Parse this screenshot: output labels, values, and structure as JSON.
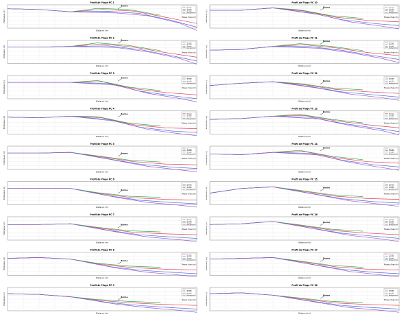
{
  "figure": {
    "text_y_axis": "Profondeur (m)",
    "text_x_axis": "Distance (m)",
    "legend_entries": [
      "Groupe",
      "Groupe",
      "Groupe",
      "Bathymétrie"
    ],
    "annotation_label": "Berme",
    "side_note": "Niveau d'eau (m)",
    "series_colors": [
      "#e4404a",
      "#4a6ee0",
      "#33a852",
      "#9b5bd6"
    ]
  },
  "chart_data": [
    {
      "type": "line",
      "title": "Profil de Plage PC 1",
      "x": [
        0,
        200,
        400,
        600,
        800,
        1000,
        1200
      ],
      "series": [
        {
          "values": [
            0.5,
            0.4,
            0.1,
            0.4,
            0.2,
            -0.6,
            -1.4
          ]
        }
      ]
    },
    {
      "type": "line",
      "title": "Profil de Plage PC 10",
      "x": [
        0,
        200,
        400,
        600,
        800,
        1000,
        1200
      ],
      "series": [
        {
          "values": [
            0.3,
            0.3,
            0.6,
            0.2,
            -0.6,
            -1.0,
            -1.2
          ]
        }
      ]
    },
    {
      "type": "line",
      "title": "Profil de Plage PC 2",
      "x": [
        0,
        200,
        400,
        600,
        800,
        1000,
        1200
      ],
      "series": [
        {
          "values": [
            0.1,
            0.1,
            0.2,
            0.5,
            0.1,
            -0.6,
            -1.2
          ]
        }
      ]
    },
    {
      "type": "line",
      "title": "Profil de Plage PC 11",
      "x": [
        0,
        200,
        400,
        600,
        800,
        1000,
        1200
      ],
      "series": [
        {
          "values": [
            -0.3,
            -0.2,
            0.2,
            0.4,
            0.0,
            -0.6,
            -1.0
          ]
        }
      ]
    },
    {
      "type": "line",
      "title": "Profil de Plage PC 3",
      "x": [
        0,
        200,
        400,
        600,
        800,
        1000,
        1200
      ],
      "series": [
        {
          "values": [
            0.1,
            0.1,
            0.1,
            0.2,
            -0.7,
            -1.2,
            -1.5
          ]
        }
      ]
    },
    {
      "type": "line",
      "title": "Profil de Plage PC 12",
      "x": [
        0,
        200,
        400,
        600,
        800,
        1000,
        1200
      ],
      "series": [
        {
          "values": [
            -0.3,
            0.0,
            0.2,
            -0.2,
            -0.8,
            -1.1,
            -1.3
          ]
        }
      ]
    },
    {
      "type": "line",
      "title": "Profil de Plage PC 4",
      "x": [
        0,
        200,
        400,
        600,
        800,
        1000,
        1200
      ],
      "series": [
        {
          "values": [
            0.2,
            0.1,
            0.3,
            0.1,
            -0.8,
            -1.2,
            -1.3
          ]
        }
      ]
    },
    {
      "type": "line",
      "title": "Profil de Plage PC 13",
      "x": [
        0,
        200,
        400,
        600,
        800,
        1000,
        1200
      ],
      "series": [
        {
          "values": [
            -0.1,
            0.0,
            0.3,
            0.4,
            -0.3,
            -0.8,
            -1.2
          ]
        }
      ]
    },
    {
      "type": "line",
      "title": "Profil de Plage PC 5",
      "x": [
        0,
        200,
        400,
        600,
        800,
        1000,
        1200
      ],
      "series": [
        {
          "values": [
            0.1,
            0.1,
            0.2,
            -0.4,
            -1.0,
            -1.3,
            -1.4
          ]
        }
      ]
    },
    {
      "type": "line",
      "title": "Profil de Plage PC 14",
      "x": [
        0,
        200,
        400,
        600,
        800,
        1000,
        1200
      ],
      "series": [
        {
          "values": [
            0.0,
            -0.1,
            0.2,
            0.3,
            -0.5,
            -1.0,
            -1.2
          ]
        }
      ]
    },
    {
      "type": "line",
      "title": "Profil de Plage PC 6",
      "x": [
        0,
        200,
        400,
        600,
        800,
        1000,
        1200
      ],
      "series": [
        {
          "values": [
            0.1,
            0.1,
            0.1,
            -0.6,
            -1.1,
            -1.3,
            -1.4
          ]
        }
      ]
    },
    {
      "type": "line",
      "title": "Profil de Plage PC 15",
      "x": [
        0,
        200,
        400,
        600,
        800,
        1000,
        1200
      ],
      "series": [
        {
          "values": [
            -0.5,
            0.1,
            0.3,
            -0.3,
            -0.9,
            -1.2,
            -1.3
          ]
        }
      ]
    },
    {
      "type": "line",
      "title": "Profil de Plage PC 7",
      "x": [
        0,
        200,
        400,
        600,
        800,
        1000,
        1200
      ],
      "series": [
        {
          "values": [
            0.0,
            0.0,
            0.1,
            -0.5,
            -1.0,
            -1.2,
            -1.3
          ]
        }
      ]
    },
    {
      "type": "line",
      "title": "Profil de Plage PC 16",
      "x": [
        0,
        200,
        400,
        600,
        800,
        1000,
        1200
      ],
      "series": [
        {
          "values": [
            0.0,
            0.1,
            0.4,
            -0.2,
            -0.8,
            -1.1,
            -1.3
          ]
        }
      ]
    },
    {
      "type": "line",
      "title": "Profil de Plage PC 8",
      "x": [
        0,
        200,
        400,
        600,
        800,
        1000,
        1200
      ],
      "series": [
        {
          "values": [
            0.2,
            0.3,
            0.1,
            -0.6,
            -1.0,
            -1.2,
            -1.3
          ]
        }
      ]
    },
    {
      "type": "line",
      "title": "Profil de Plage PC 17",
      "x": [
        0,
        200,
        400,
        600,
        800,
        1000,
        1200
      ],
      "series": [
        {
          "values": [
            0.1,
            0.2,
            0.3,
            -0.3,
            -0.9,
            -1.2,
            -1.3
          ]
        }
      ]
    },
    {
      "type": "line",
      "title": "Profil de Plage PC 9",
      "x": [
        0,
        200,
        400,
        600,
        800,
        1000,
        1200
      ],
      "series": [
        {
          "values": [
            0.2,
            0.1,
            -0.2,
            -0.7,
            -1.0,
            -1.2,
            -1.3
          ]
        }
      ]
    },
    {
      "type": "line",
      "title": "Profil de Plage PC 18",
      "x": [
        0,
        200,
        400,
        600,
        800,
        1000,
        1200
      ],
      "series": [
        {
          "values": [
            0.2,
            0.3,
            0.0,
            -0.5,
            -1.0,
            -1.2,
            -1.3
          ]
        }
      ]
    }
  ]
}
